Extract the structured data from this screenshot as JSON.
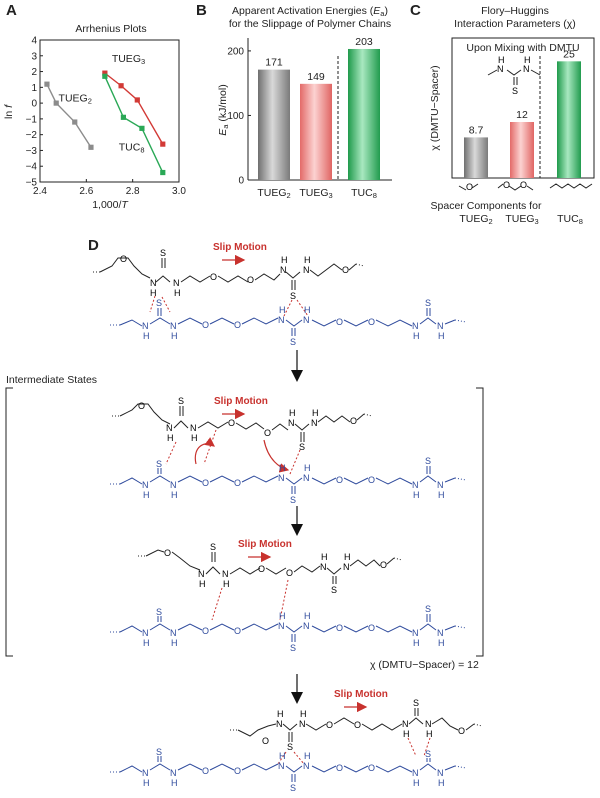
{
  "panel_labels": {
    "a": "A",
    "b": "B",
    "c": "C",
    "d": "D"
  },
  "colors": {
    "tueg2": "#8c8c8c",
    "tueg3": "#d23a36",
    "tuc8": "#2aa856",
    "polymer_blue": "#2e4a9c",
    "slip_red": "#c8322e",
    "bar_gray": "#9a9a9a",
    "bar_red": "#f08a88",
    "bar_green": "#3fb870"
  },
  "panelD": {
    "slip_label": "Slip Motion",
    "intermediate_label": "Intermediate States",
    "chi_note": "χ (DMTU−Spacer) = 12",
    "atoms": {
      "N": "N",
      "H": "H",
      "S": "S",
      "O": "O"
    }
  },
  "panelC_inset_atoms": {
    "N": "N",
    "H": "H",
    "S": "S"
  },
  "chart_data": [
    {
      "type": "line",
      "title": "Arrhenius Plots",
      "xlabel_prefix": "1,000/",
      "xlabel_var": "T",
      "ylabel": "ln ",
      "ylabel_var": "f",
      "xlim": [
        2.4,
        3.0
      ],
      "ylim": [
        -5,
        4
      ],
      "xticks": [
        "2.4",
        "2.6",
        "2.8",
        "3.0"
      ],
      "yticks": [
        "4",
        "3",
        "2",
        "1",
        "0",
        "−1",
        "−2",
        "−3",
        "−4",
        "−5"
      ],
      "series": [
        {
          "name": "TUEG",
          "sub": "2",
          "x": [
            2.43,
            2.47,
            2.55,
            2.62
          ],
          "y": [
            1.2,
            0.0,
            -1.2,
            -2.8
          ]
        },
        {
          "name": "TUEG",
          "sub": "3",
          "x": [
            2.68,
            2.75,
            2.82,
            2.93
          ],
          "y": [
            1.9,
            1.1,
            0.2,
            -2.6
          ]
        },
        {
          "name": "TUC",
          "sub": "8",
          "x": [
            2.68,
            2.76,
            2.84,
            2.93
          ],
          "y": [
            1.7,
            -0.9,
            -1.6,
            -4.4
          ]
        }
      ]
    },
    {
      "type": "bar",
      "title_line1": "Apparent Activation Energies (",
      "title_var": "E",
      "title_sub": "a",
      "title_line1_end": ")",
      "title_line2": "for the Slippage of Polymer Chains",
      "ylabel_var": "E",
      "ylabel_sub": "a",
      "ylabel_unit": " (kJ/mol)",
      "ylim": [
        0,
        200
      ],
      "yticks": [
        "0",
        "100",
        "200"
      ],
      "categories": [
        {
          "name": "TUEG",
          "sub": "2"
        },
        {
          "name": "TUEG",
          "sub": "3"
        },
        {
          "name": "TUC",
          "sub": "8"
        }
      ],
      "values": [
        171,
        149,
        203
      ],
      "value_labels": [
        "171",
        "149",
        "203"
      ]
    },
    {
      "type": "bar",
      "title_line1": "Flory–Huggins",
      "title_line2": "Interaction Parameters (χ)",
      "inset_label": "Upon Mixing with DMTU",
      "ylabel": "χ (DMTU−Spacer)",
      "ylim": [
        0,
        30
      ],
      "values": [
        8.7,
        12,
        25
      ],
      "value_labels": [
        "8.7",
        "12",
        "25"
      ],
      "xlabel": "Spacer Components for",
      "categories": [
        {
          "name": "TUEG",
          "sub": "2"
        },
        {
          "name": "TUEG",
          "sub": "3"
        },
        {
          "name": "TUC",
          "sub": "8"
        }
      ],
      "spacer_atom": "O"
    }
  ]
}
